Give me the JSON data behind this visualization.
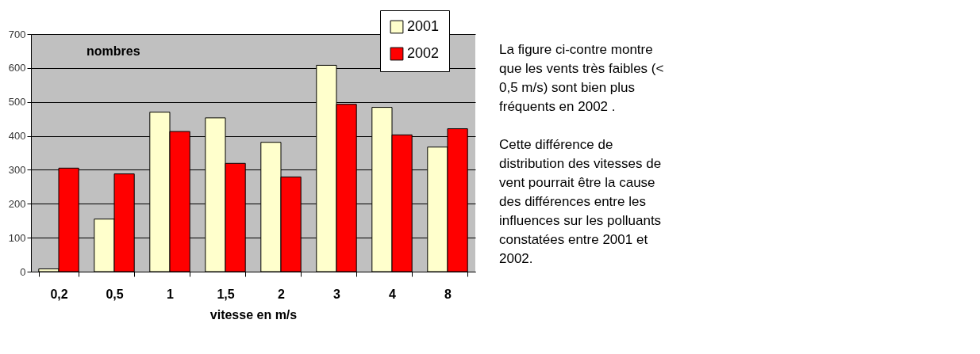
{
  "chart_data": {
    "type": "bar",
    "ylabel": "nombres",
    "xlabel": "vitesse en m/s",
    "categories": [
      "0,2",
      "0,5",
      "1",
      "1,5",
      "2",
      "3",
      "4",
      "8"
    ],
    "series": [
      {
        "name": "2001",
        "color": "#ffffcc",
        "values": [
          8,
          155,
          470,
          453,
          381,
          608,
          484,
          367
        ]
      },
      {
        "name": "2002",
        "color": "#ff0000",
        "values": [
          305,
          288,
          413,
          319,
          279,
          493,
          403,
          421
        ]
      }
    ],
    "ylim": [
      0,
      700
    ],
    "yticks": [
      0,
      100,
      200,
      300,
      400,
      500,
      600,
      700
    ],
    "grid": "y",
    "legend": "top right",
    "annotations": [
      "La figure ci-contre montre que les vents très faibles (< 0,5 m/s) sont bien plus fréquents en 2002 .",
      "Cette différence de distribution des vitesses de vent pourrait être la cause des différences entre les influences sur les polluants constatées entre 2001 et 2002."
    ]
  }
}
